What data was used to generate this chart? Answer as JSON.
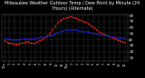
{
  "title": "Milwaukee Weather Outdoor Temp / Dew Point by Minute (24 Hours) (Alternate)",
  "title_fontsize": 3.5,
  "bg_color": "#000000",
  "plot_bg": "#000000",
  "title_color": "#ffffff",
  "temp_color": "#ff2020",
  "dew_color": "#2020ff",
  "ylim": [
    5,
    82
  ],
  "yticks": [
    10,
    20,
    30,
    40,
    50,
    60,
    70,
    80
  ],
  "ytick_labels": [
    "10",
    "20",
    "30",
    "40",
    "50",
    "60",
    "70",
    "80"
  ],
  "ytick_fontsize": 3.0,
  "xtick_fontsize": 2.5,
  "grid_color": "#555555",
  "temp_values": [
    38,
    37,
    36,
    35,
    35,
    34,
    34,
    33,
    33,
    33,
    33,
    34,
    34,
    35,
    36,
    36,
    37,
    37,
    36,
    35,
    35,
    35,
    35,
    36,
    37,
    38,
    39,
    40,
    41,
    43,
    45,
    47,
    49,
    52,
    55,
    58,
    61,
    64,
    67,
    69,
    71,
    72,
    74,
    75,
    76,
    77,
    77,
    78,
    78,
    77,
    77,
    76,
    75,
    74,
    73,
    72,
    71,
    70,
    69,
    68,
    67,
    65,
    64,
    62,
    61,
    59,
    57,
    56,
    54,
    52,
    51,
    50,
    49,
    48,
    47,
    46,
    45,
    44,
    43,
    42,
    41,
    40,
    39,
    38,
    37,
    37,
    36,
    36
  ],
  "dew_values": [
    42,
    42,
    41,
    41,
    41,
    40,
    40,
    40,
    40,
    40,
    40,
    40,
    41,
    41,
    41,
    41,
    41,
    42,
    42,
    42,
    42,
    42,
    42,
    43,
    43,
    43,
    44,
    44,
    44,
    45,
    45,
    46,
    46,
    47,
    47,
    48,
    49,
    50,
    51,
    52,
    53,
    54,
    55,
    55,
    56,
    56,
    57,
    57,
    57,
    57,
    56,
    56,
    56,
    55,
    55,
    55,
    54,
    54,
    53,
    53,
    53,
    52,
    52,
    51,
    51,
    50,
    50,
    49,
    49,
    48,
    48,
    47,
    47,
    47,
    46,
    46,
    45,
    45,
    45,
    44,
    44,
    44,
    43,
    43,
    43,
    43,
    43,
    42
  ],
  "xtick_labels": [
    "12a",
    "1",
    "2",
    "3",
    "4",
    "5",
    "6",
    "7",
    "8",
    "9",
    "10",
    "11",
    "12p",
    "1",
    "2",
    "3",
    "4",
    "5",
    "6",
    "7",
    "8",
    "9",
    "10",
    "11"
  ],
  "n_xgrid": 24,
  "marker_size": 1.2
}
